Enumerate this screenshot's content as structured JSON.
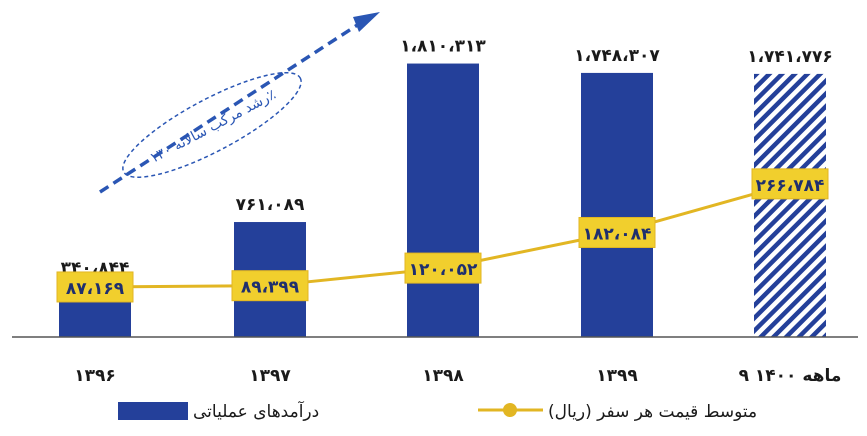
{
  "colors": {
    "bar": "#24409a",
    "line": "#e2b623",
    "label_box": "#f1cf2d",
    "label_text": "#1f2f6e",
    "axis": "#555555",
    "arrow": "#2a56b4",
    "text": "#1a1a1a"
  },
  "chart_data": {
    "type": "bar",
    "categories": [
      "۱۳۹۶",
      "۱۳۹۷",
      "۱۳۹۸",
      "۱۳۹۹",
      "۹ ماهه ۱۴۰۰"
    ],
    "series": [
      {
        "name": "درآمدهای عملیاتی",
        "type": "bar",
        "values": [
          340844,
          761089,
          1810313,
          1748307,
          1741776
        ],
        "labels": [
          "۳۴۰،۸۴۴",
          "۷۶۱،۰۸۹",
          "۱،۸۱۰،۳۱۳",
          "۱،۷۴۸،۳۰۷",
          "۱،۷۴۱،۷۷۶"
        ],
        "hatched": [
          false,
          false,
          false,
          false,
          true
        ]
      },
      {
        "name": "متوسط قیمت هر سفر (ریال)",
        "type": "line",
        "values": [
          87169,
          89399,
          120052,
          182084,
          266784
        ],
        "labels": [
          "۸۷،۱۶۹",
          "۸۹،۳۹۹",
          "۱۲۰،۰۵۲",
          "۱۸۲،۰۸۴",
          "۲۶۶،۷۸۴"
        ]
      }
    ],
    "ylim": [
      0,
      1900000
    ],
    "line_ylim": [
      0,
      500000
    ],
    "grid": false,
    "legend_position": "bottom",
    "annotation": "رشد مرکب سالانه ۱۳۰٪"
  }
}
